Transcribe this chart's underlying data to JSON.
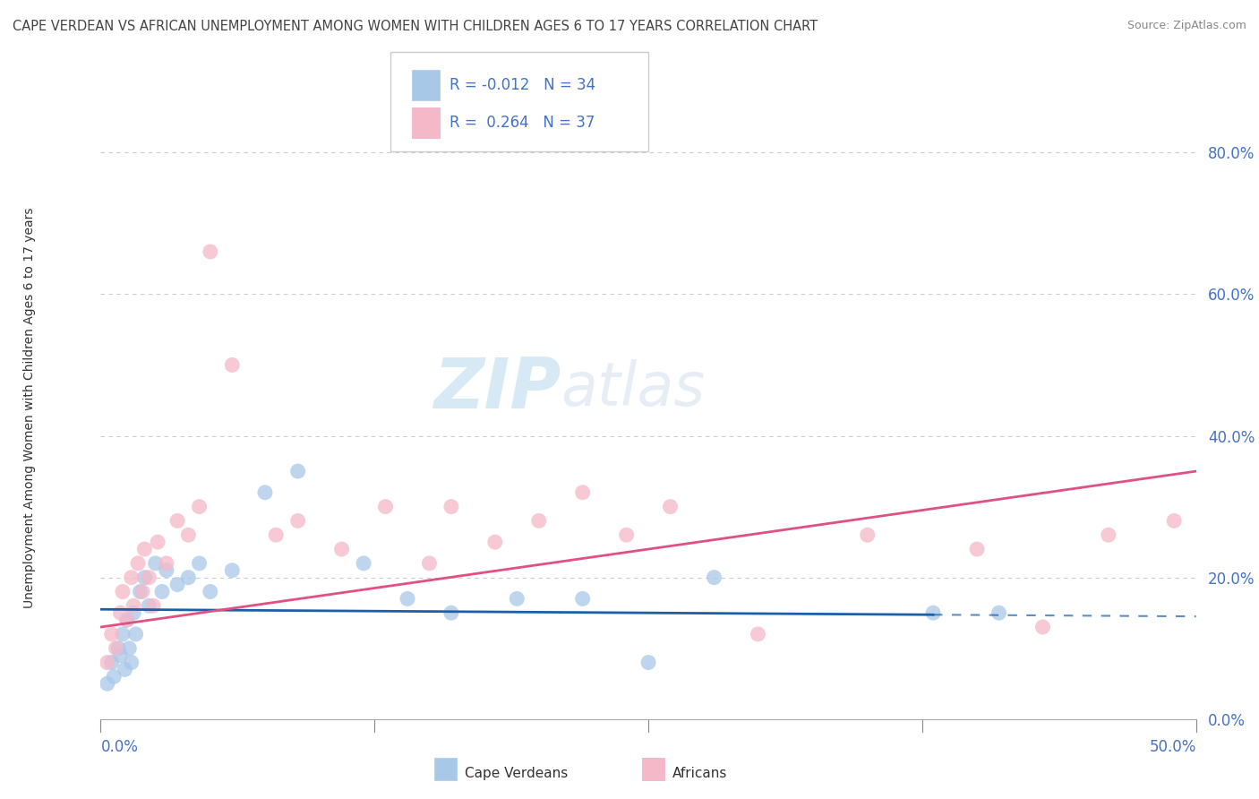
{
  "title": "CAPE VERDEAN VS AFRICAN UNEMPLOYMENT AMONG WOMEN WITH CHILDREN AGES 6 TO 17 YEARS CORRELATION CHART",
  "source": "Source: ZipAtlas.com",
  "ylabel": "Unemployment Among Women with Children Ages 6 to 17 years",
  "ytick_labels": [
    "0.0%",
    "20.0%",
    "40.0%",
    "60.0%",
    "80.0%"
  ],
  "ytick_values": [
    0,
    20,
    40,
    60,
    80
  ],
  "xlim": [
    0,
    50
  ],
  "ylim": [
    0,
    88
  ],
  "watermark_zip": "ZIP",
  "watermark_atlas": "atlas",
  "legend_r1": "-0.012",
  "legend_n1": "34",
  "legend_r2": "0.264",
  "legend_n2": "37",
  "blue_scatter_color": "#a8c8e8",
  "pink_scatter_color": "#f5b8c8",
  "blue_line_color": "#1a5fa8",
  "pink_line_color": "#e05080",
  "title_color": "#444444",
  "source_color": "#888888",
  "axis_label_color": "#4472c4",
  "legend_text_color": "#4472c4",
  "grid_color": "#cccccc",
  "cape_verdean_x": [
    0.3,
    0.5,
    0.6,
    0.8,
    0.9,
    1.0,
    1.1,
    1.2,
    1.3,
    1.4,
    1.5,
    1.6,
    1.8,
    2.0,
    2.2,
    2.5,
    2.8,
    3.0,
    3.5,
    4.0,
    4.5,
    5.0,
    6.0,
    7.5,
    9.0,
    12.0,
    14.0,
    16.0,
    19.0,
    22.0,
    25.0,
    28.0,
    38.0,
    41.0
  ],
  "cape_verdean_y": [
    5,
    8,
    6,
    10,
    9,
    12,
    7,
    14,
    10,
    8,
    15,
    12,
    18,
    20,
    16,
    22,
    18,
    21,
    19,
    20,
    22,
    18,
    21,
    32,
    35,
    22,
    17,
    15,
    17,
    17,
    8,
    20,
    15,
    15
  ],
  "african_x": [
    0.3,
    0.5,
    0.7,
    0.9,
    1.0,
    1.2,
    1.4,
    1.5,
    1.7,
    1.9,
    2.0,
    2.2,
    2.4,
    2.6,
    3.0,
    3.5,
    4.0,
    4.5,
    5.0,
    6.0,
    8.0,
    9.0,
    11.0,
    13.0,
    15.0,
    16.0,
    18.0,
    20.0,
    22.0,
    24.0,
    26.0,
    30.0,
    35.0,
    40.0,
    43.0,
    46.0,
    49.0
  ],
  "african_y": [
    8,
    12,
    10,
    15,
    18,
    14,
    20,
    16,
    22,
    18,
    24,
    20,
    16,
    25,
    22,
    28,
    26,
    30,
    66,
    50,
    26,
    28,
    24,
    30,
    22,
    30,
    25,
    28,
    32,
    26,
    30,
    12,
    26,
    24,
    13,
    26,
    28
  ],
  "cv_trend_start_y": 15.5,
  "cv_trend_end_y": 14.5,
  "af_trend_start_y": 13.0,
  "af_trend_end_y": 35.0
}
